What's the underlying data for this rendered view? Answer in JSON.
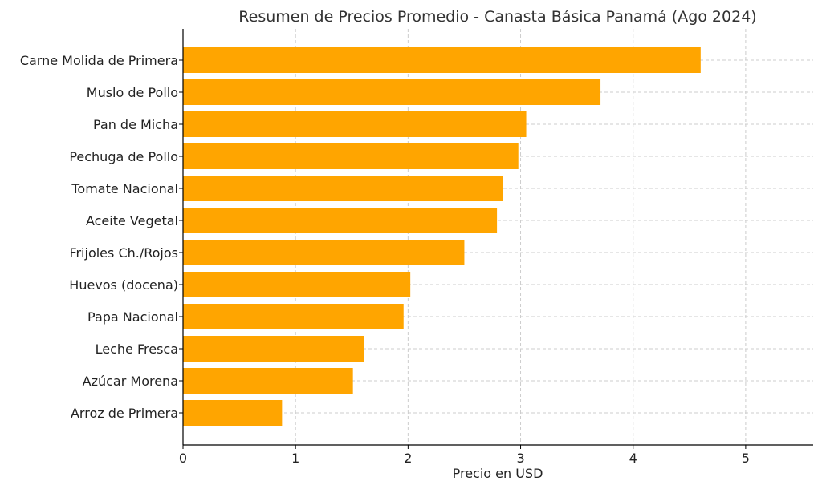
{
  "chart_data": {
    "type": "bar",
    "orientation": "horizontal",
    "title": "Resumen de Precios Promedio - Canasta Básica Panamá (Ago 2024)",
    "xlabel": "Precio en USD",
    "ylabel": "",
    "xlim": [
      0,
      5.6
    ],
    "xticks": [
      0,
      1,
      2,
      3,
      4,
      5
    ],
    "grid": true,
    "bar_color": "#FFA500",
    "categories": [
      "Carne Molida de Primera",
      "Muslo de Pollo",
      "Pan de Micha",
      "Pechuga de Pollo",
      "Tomate Nacional",
      "Aceite Vegetal",
      "Frijoles Ch./Rojos",
      "Huevos (docena)",
      "Papa Nacional",
      "Leche Fresca",
      "Azúcar Morena",
      "Arroz de Primera"
    ],
    "values": [
      4.6,
      3.71,
      3.05,
      2.98,
      2.84,
      2.79,
      2.5,
      2.02,
      1.96,
      1.61,
      1.51,
      0.88
    ]
  }
}
